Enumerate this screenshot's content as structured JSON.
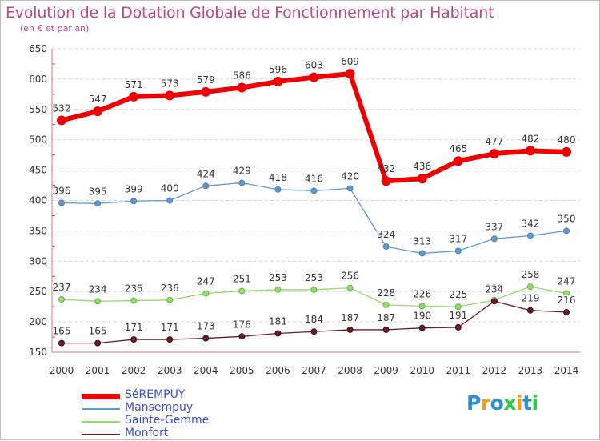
{
  "chart_data": {
    "type": "line",
    "title": "Evolution de la Dotation Globale de Fonctionnement par Habitant",
    "subtitle": "(en € et par an)",
    "xlabel": "",
    "ylabel": "",
    "categories": [
      "2000",
      "2001",
      "2002",
      "2003",
      "2004",
      "2005",
      "2006",
      "2007",
      "2008",
      "2009",
      "2010",
      "2011",
      "2012",
      "2013",
      "2014"
    ],
    "ylim": [
      150,
      650
    ],
    "yticks": [
      150,
      200,
      250,
      300,
      350,
      400,
      450,
      500,
      550,
      600,
      650
    ],
    "grid": "horizontal dashed",
    "legend_position": "bottom-left",
    "series": [
      {
        "name": "SéREMPUY",
        "color": "#ee0000",
        "values": [
          532,
          547,
          571,
          573,
          579,
          586,
          596,
          603,
          609,
          432,
          436,
          465,
          477,
          482,
          480
        ]
      },
      {
        "name": "Mansempuy",
        "color": "#5b9bd5",
        "values": [
          396,
          395,
          399,
          400,
          424,
          429,
          418,
          416,
          420,
          324,
          313,
          317,
          337,
          342,
          350
        ]
      },
      {
        "name": "Sainte-Gemme",
        "color": "#8fdc6a",
        "values": [
          237,
          234,
          235,
          236,
          247,
          251,
          253,
          253,
          256,
          228,
          226,
          225,
          236,
          258,
          247
        ]
      },
      {
        "name": "Monfort",
        "color": "#6b1d24",
        "values": [
          165,
          165,
          171,
          171,
          173,
          176,
          181,
          184,
          187,
          187,
          190,
          191,
          234,
          219,
          216
        ]
      }
    ]
  },
  "logo": {
    "letters": [
      "P",
      "r",
      "o",
      "x",
      "i",
      "t",
      "i"
    ],
    "colors": [
      "#2a8fd8",
      "#f39c12",
      "#2a8fd8",
      "#2ecc40",
      "#f39c12",
      "#2a8fd8",
      "#2ecc40"
    ]
  }
}
